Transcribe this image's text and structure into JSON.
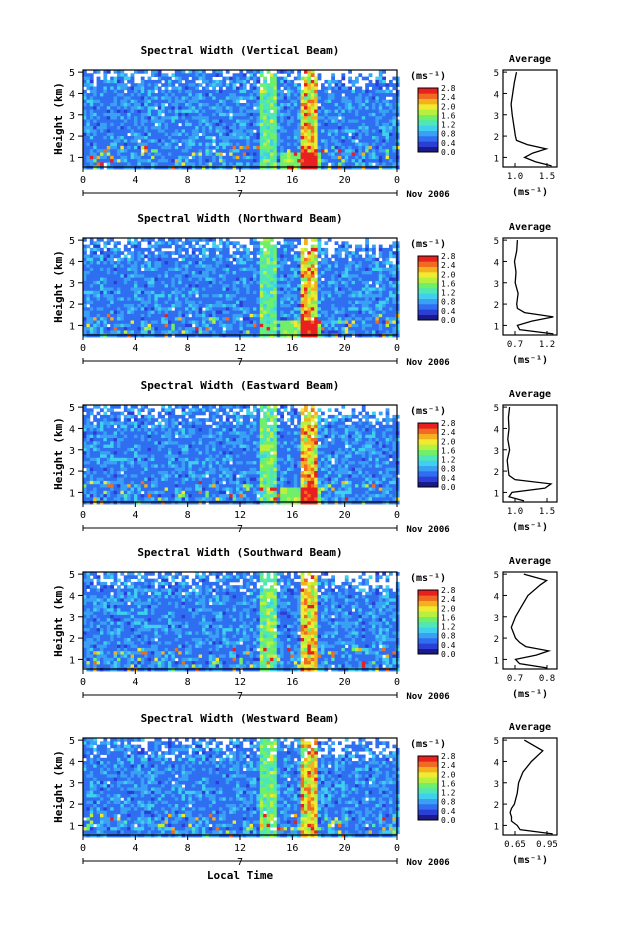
{
  "figure": {
    "xlabel_bottom": "Local Time",
    "cbar_unit": "(ms⁻¹)",
    "date_label": "Nov 2006",
    "day_label": "7"
  },
  "chart_data": [
    {
      "type": "heatmap",
      "title": "Spectral Width (Vertical Beam)",
      "xlabel": "Local Time",
      "ylabel": "Height (km)",
      "x_ticks": [
        "0",
        "4",
        "8",
        "12",
        "16",
        "20",
        "0"
      ],
      "xlim": [
        0,
        24
      ],
      "y_ticks": [
        "1",
        "2",
        "3",
        "4",
        "5"
      ],
      "ylim": [
        0.55,
        5.1
      ],
      "colorbar": {
        "label": "(ms⁻¹)",
        "ticks": [
          "0.0",
          "0.4",
          "0.8",
          "1.2",
          "1.6",
          "2.0",
          "2.4",
          "2.8"
        ],
        "range": [
          0.0,
          2.8
        ]
      },
      "average_panel": {
        "title": "Average",
        "xlabel": "(ms⁻¹)",
        "x_ticks": [
          "1.0",
          "1.5"
        ],
        "xlim": [
          0.75,
          1.75
        ],
        "ylim": [
          0.55,
          5.1
        ],
        "profile": [
          [
            0.6,
            1.65
          ],
          [
            0.8,
            1.35
          ],
          [
            1.0,
            1.15
          ],
          [
            1.2,
            1.3
          ],
          [
            1.4,
            1.55
          ],
          [
            1.6,
            1.2
          ],
          [
            1.8,
            1.0
          ],
          [
            2.0,
            0.98
          ],
          [
            2.5,
            0.95
          ],
          [
            3.0,
            0.92
          ],
          [
            3.5,
            0.9
          ],
          [
            4.0,
            0.93
          ],
          [
            4.5,
            0.96
          ],
          [
            5.0,
            1.0
          ]
        ]
      }
    },
    {
      "type": "heatmap",
      "title": "Spectral Width (Northward Beam)",
      "xlabel": "Local Time",
      "ylabel": "Height (km)",
      "x_ticks": [
        "0",
        "4",
        "8",
        "12",
        "16",
        "20",
        "0"
      ],
      "xlim": [
        0,
        24
      ],
      "y_ticks": [
        "1",
        "2",
        "3",
        "4",
        "5"
      ],
      "ylim": [
        0.55,
        5.1
      ],
      "colorbar": {
        "label": "(ms⁻¹)",
        "ticks": [
          "0.0",
          "0.4",
          "0.8",
          "1.2",
          "1.6",
          "2.0",
          "2.4",
          "2.8"
        ],
        "range": [
          0.0,
          2.8
        ]
      },
      "average_panel": {
        "title": "Average",
        "xlabel": "(ms⁻¹)",
        "x_ticks": [
          "0.7",
          "1.2"
        ],
        "xlim": [
          0.55,
          1.3
        ],
        "profile": [
          [
            0.6,
            1.25
          ],
          [
            0.8,
            0.78
          ],
          [
            1.0,
            0.75
          ],
          [
            1.2,
            0.95
          ],
          [
            1.4,
            1.25
          ],
          [
            1.6,
            0.85
          ],
          [
            1.8,
            0.75
          ],
          [
            2.0,
            0.74
          ],
          [
            2.5,
            0.76
          ],
          [
            3.0,
            0.72
          ],
          [
            3.5,
            0.73
          ],
          [
            4.0,
            0.71
          ],
          [
            4.5,
            0.74
          ],
          [
            5.0,
            0.75
          ]
        ]
      }
    },
    {
      "type": "heatmap",
      "title": "Spectral Width (Eastward Beam)",
      "xlabel": "Local Time",
      "ylabel": "Height (km)",
      "x_ticks": [
        "0",
        "4",
        "8",
        "12",
        "16",
        "20",
        "0"
      ],
      "xlim": [
        0,
        24
      ],
      "y_ticks": [
        "1",
        "2",
        "3",
        "4",
        "5"
      ],
      "ylim": [
        0.55,
        5.1
      ],
      "colorbar": {
        "label": "(ms⁻¹)",
        "ticks": [
          "0.0",
          "0.4",
          "0.8",
          "1.2",
          "1.6",
          "2.0",
          "2.4",
          "2.8"
        ],
        "range": [
          0.0,
          2.8
        ]
      },
      "average_panel": {
        "title": "Average",
        "xlabel": "(ms⁻¹)",
        "x_ticks": [
          "1.0",
          "1.5"
        ],
        "xlim": [
          0.75,
          1.65
        ],
        "profile": [
          [
            0.6,
            1.1
          ],
          [
            0.8,
            0.85
          ],
          [
            1.0,
            0.9
          ],
          [
            1.2,
            1.45
          ],
          [
            1.4,
            1.55
          ],
          [
            1.6,
            0.95
          ],
          [
            1.8,
            0.85
          ],
          [
            2.0,
            0.84
          ],
          [
            2.5,
            0.82
          ],
          [
            3.0,
            0.86
          ],
          [
            3.5,
            0.83
          ],
          [
            4.0,
            0.85
          ],
          [
            4.5,
            0.84
          ],
          [
            5.0,
            0.86
          ]
        ]
      }
    },
    {
      "type": "heatmap",
      "title": "Spectral Width (Southward Beam)",
      "xlabel": "Local Time",
      "ylabel": "Height (km)",
      "x_ticks": [
        "0",
        "4",
        "8",
        "12",
        "16",
        "20",
        "0"
      ],
      "xlim": [
        0,
        24
      ],
      "y_ticks": [
        "1",
        "2",
        "3",
        "4",
        "5"
      ],
      "ylim": [
        0.55,
        5.1
      ],
      "colorbar": {
        "label": "(ms⁻¹)",
        "ticks": [
          "0.0",
          "0.4",
          "0.8",
          "1.2",
          "1.6",
          "2.0",
          "2.4",
          "2.8"
        ],
        "range": [
          0.0,
          2.8
        ]
      },
      "average_panel": {
        "title": "Average",
        "xlabel": "(ms⁻¹)",
        "x_ticks": [
          "0.7",
          "0.8"
        ],
        "xlim": [
          0.64,
          0.9
        ],
        "profile": [
          [
            0.6,
            0.85
          ],
          [
            0.8,
            0.72
          ],
          [
            1.0,
            0.7
          ],
          [
            1.2,
            0.8
          ],
          [
            1.4,
            0.86
          ],
          [
            1.6,
            0.75
          ],
          [
            1.8,
            0.72
          ],
          [
            2.0,
            0.7
          ],
          [
            2.5,
            0.68
          ],
          [
            3.0,
            0.7
          ],
          [
            3.5,
            0.73
          ],
          [
            4.0,
            0.76
          ],
          [
            4.5,
            0.82
          ],
          [
            4.7,
            0.85
          ],
          [
            5.0,
            0.74
          ]
        ]
      }
    },
    {
      "type": "heatmap",
      "title": "Spectral Width (Westward Beam)",
      "xlabel": "Local Time",
      "ylabel": "Height (km)",
      "x_ticks": [
        "0",
        "4",
        "8",
        "12",
        "16",
        "20",
        "0"
      ],
      "xlim": [
        0,
        24
      ],
      "y_ticks": [
        "1",
        "2",
        "3",
        "4",
        "5"
      ],
      "ylim": [
        0.55,
        5.1
      ],
      "colorbar": {
        "label": "(ms⁻¹)",
        "ticks": [
          "0.0",
          "0.4",
          "0.8",
          "1.2",
          "1.6",
          "2.0",
          "2.4",
          "2.8"
        ],
        "range": [
          0.0,
          2.8
        ]
      },
      "average_panel": {
        "title": "Average",
        "xlabel": "(ms⁻¹)",
        "x_ticks": [
          "0.65",
          "0.95"
        ],
        "xlim": [
          0.6,
          0.98
        ],
        "profile": [
          [
            0.6,
            0.95
          ],
          [
            0.8,
            0.72
          ],
          [
            1.0,
            0.7
          ],
          [
            1.2,
            0.66
          ],
          [
            1.4,
            0.66
          ],
          [
            1.6,
            0.65
          ],
          [
            1.8,
            0.66
          ],
          [
            2.0,
            0.68
          ],
          [
            2.5,
            0.7
          ],
          [
            3.0,
            0.71
          ],
          [
            3.5,
            0.74
          ],
          [
            4.0,
            0.8
          ],
          [
            4.5,
            0.88
          ],
          [
            5.0,
            0.75
          ]
        ]
      }
    }
  ]
}
